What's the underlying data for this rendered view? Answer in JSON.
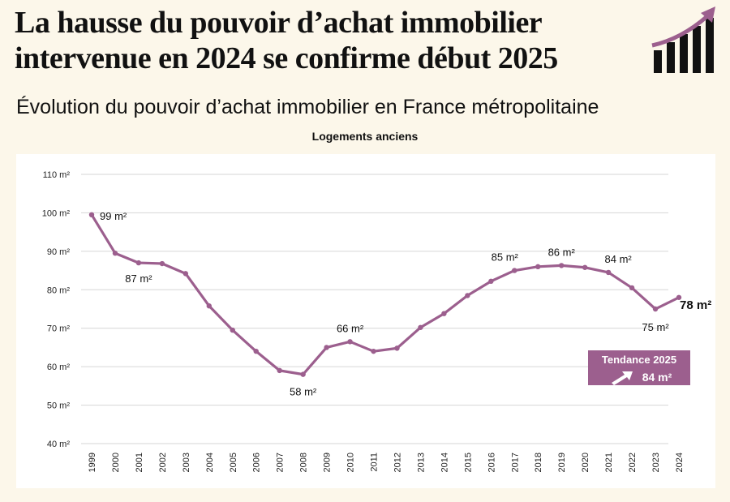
{
  "header": {
    "headline": "La hausse du pouvoir d’achat immobilier intervenue en 2024 se confirme début 2025",
    "logo_icon": "rising-bars-arrow-icon"
  },
  "subtitle": "Évolution du pouvoir d’achat immobilier en France métropolitaine",
  "chart_data": {
    "type": "line",
    "title": "Logements anciens",
    "xlabel": "",
    "ylabel": "",
    "ylim": [
      40,
      110
    ],
    "yticks": [
      40,
      50,
      60,
      70,
      80,
      90,
      100,
      110
    ],
    "ytick_suffix": " m²",
    "grid": true,
    "line_color": "#9c5f8e",
    "x": [
      1999,
      2000,
      2001,
      2002,
      2003,
      2004,
      2005,
      2006,
      2007,
      2008,
      2009,
      2010,
      2011,
      2012,
      2013,
      2014,
      2015,
      2016,
      2017,
      2018,
      2019,
      2020,
      2021,
      2022,
      2023,
      2024
    ],
    "series": [
      {
        "name": "",
        "values": [
          99.5,
          89.5,
          87,
          86.8,
          84.2,
          75.8,
          69.5,
          64,
          59,
          58,
          65,
          66.5,
          64,
          64.8,
          70.2,
          73.8,
          78.5,
          82.2,
          85,
          86,
          86.3,
          85.8,
          84.5,
          80.5,
          75,
          78
        ]
      }
    ],
    "annotations": [
      {
        "x": 1999,
        "text": "99 m²"
      },
      {
        "x": 2001,
        "text": "87 m²"
      },
      {
        "x": 2008,
        "text": "58 m²"
      },
      {
        "x": 2010,
        "text": "66 m²"
      },
      {
        "x": 2017,
        "text": "85 m²"
      },
      {
        "x": 2019,
        "text": "86 m²"
      },
      {
        "x": 2021,
        "text": "84 m²"
      },
      {
        "x": 2023,
        "text": "75 m²"
      },
      {
        "x": 2024,
        "text": "78 m²",
        "bold": true
      }
    ],
    "trend": {
      "label": "Tendance 2025",
      "value": "84 m²",
      "color": "#9c5f8e",
      "icon": "trend-arrow-icon"
    }
  }
}
